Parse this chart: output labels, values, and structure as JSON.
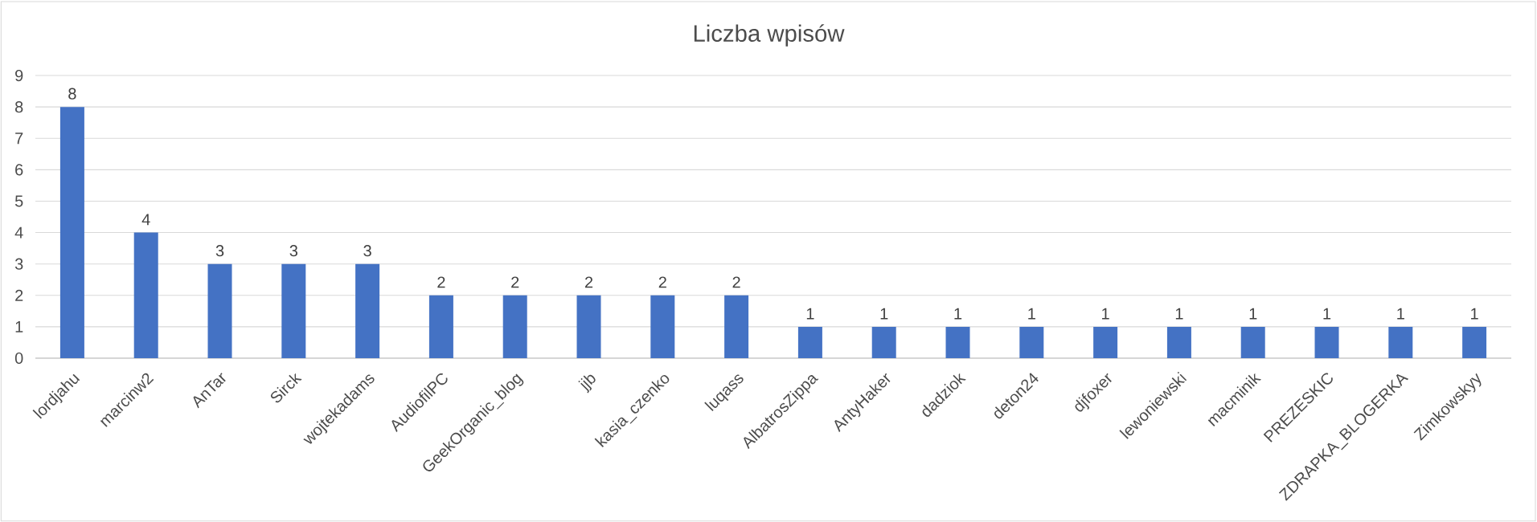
{
  "chart_data": {
    "type": "bar",
    "title": "Liczba wpisów",
    "categories": [
      "lordjahu",
      "marcinw2",
      "AnTar",
      "Sirck",
      "wojtekadams",
      "AudiofilPC",
      "GeekOrganic_blog",
      "jjb",
      "kasia_czenko",
      "luqass",
      "AlbatrosZippa",
      "AntyHaker",
      "dadziok",
      "deton24",
      "djfoxer",
      "lewoniewski",
      "macminik",
      "PREZESKIC",
      "ZDRAPKA_BLOGERKA",
      "Zimkowskyy"
    ],
    "values": [
      8,
      4,
      3,
      3,
      3,
      2,
      2,
      2,
      2,
      2,
      1,
      1,
      1,
      1,
      1,
      1,
      1,
      1,
      1,
      1
    ],
    "color": "#4472c4",
    "ylim": [
      0,
      9
    ],
    "yticks": [
      0,
      1,
      2,
      3,
      4,
      5,
      6,
      7,
      8,
      9
    ],
    "grid": "y",
    "data_labels": true
  }
}
